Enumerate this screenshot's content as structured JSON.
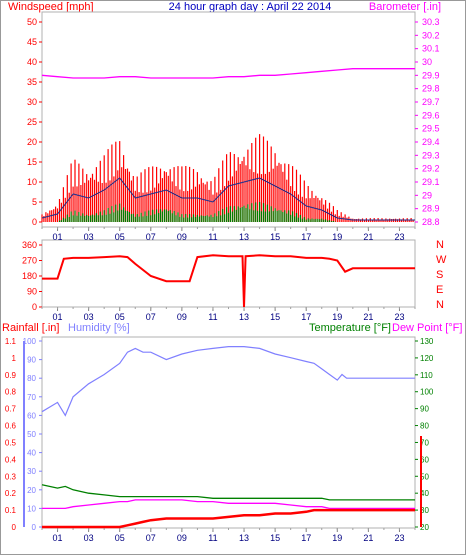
{
  "title": "24 hour graph day : April 22 2014",
  "colors": {
    "wind_gust": "#ff0000",
    "wind_avg": "#1c2c8c",
    "wind_low": "#008000",
    "barometer": "#ff00ff",
    "direction": "#ff0000",
    "rain": "#ff0000",
    "humidity": "#8080ff",
    "temperature": "#008000",
    "dewpoint": "#ff00ff",
    "hour_labels": "#000080"
  },
  "chart_data": [
    {
      "type": "line",
      "panel": "wind-barometer",
      "left_axis": {
        "label": "Windspeed [mph]",
        "ticks": [
          0,
          5,
          10,
          15,
          20,
          25,
          30,
          35,
          40,
          45,
          50
        ],
        "range": [
          0,
          50
        ]
      },
      "right_axis": {
        "label": "Barometer [.in]",
        "ticks": [
          "28.8",
          "28.9",
          "29",
          "29.1",
          "29.2",
          "29.3",
          "29.4",
          "29.5",
          "29.6",
          "29.7",
          "29.8",
          "29.9",
          "30",
          "30.1",
          "30.2",
          "30.3"
        ],
        "range": [
          28.8,
          30.3
        ]
      },
      "x_ticks": [
        "01",
        "03",
        "05",
        "07",
        "09",
        "11",
        "13",
        "15",
        "17",
        "19",
        "21",
        "23"
      ],
      "x": [
        0,
        1,
        2,
        3,
        4,
        5,
        6,
        7,
        8,
        9,
        10,
        11,
        12,
        13,
        14,
        15,
        16,
        17,
        18,
        19,
        20,
        21,
        22,
        23,
        24
      ],
      "series": [
        {
          "key": "gust",
          "values": [
            2,
            5,
            16,
            14,
            17,
            22,
            12,
            14,
            16,
            14,
            14,
            11,
            18,
            20,
            22,
            20,
            15,
            10,
            7,
            3,
            1,
            1,
            1,
            1,
            1
          ]
        },
        {
          "key": "avg",
          "values": [
            1,
            2,
            7,
            6,
            8,
            11,
            6,
            7,
            8,
            6,
            6,
            5,
            9,
            10,
            11,
            9,
            7,
            4,
            3,
            1,
            0.5,
            0.5,
            0.5,
            0.5,
            0.5
          ]
        },
        {
          "key": "low",
          "values": [
            0,
            0,
            3,
            2,
            3,
            5,
            2,
            3,
            4,
            2,
            2,
            2,
            4,
            5,
            5,
            4,
            3,
            1,
            1,
            0,
            0,
            0,
            0,
            0,
            0
          ]
        },
        {
          "key": "barometer",
          "values": [
            29.9,
            29.89,
            29.88,
            29.88,
            29.88,
            29.89,
            29.89,
            29.88,
            29.88,
            29.88,
            29.88,
            29.88,
            29.89,
            29.89,
            29.9,
            29.9,
            29.91,
            29.92,
            29.93,
            29.94,
            29.95,
            29.95,
            29.95,
            29.95,
            29.95
          ]
        }
      ]
    },
    {
      "type": "line",
      "panel": "wind-direction",
      "left_axis": {
        "ticks": [
          0,
          90,
          180,
          270,
          360
        ],
        "range": [
          0,
          360
        ]
      },
      "compass": [
        "N",
        "W",
        "S",
        "E",
        "N"
      ],
      "x": [
        0,
        1,
        1.4,
        2,
        3,
        4,
        5,
        5.5,
        6,
        7,
        8,
        9,
        9.5,
        10,
        11,
        12,
        12.9,
        13,
        13.1,
        14,
        15,
        16,
        17,
        18,
        18.5,
        19,
        19.5,
        20,
        24
      ],
      "values": [
        165,
        165,
        280,
        285,
        285,
        290,
        295,
        290,
        250,
        180,
        150,
        150,
        150,
        290,
        300,
        295,
        295,
        0,
        295,
        300,
        295,
        295,
        285,
        285,
        280,
        270,
        205,
        225,
        225
      ]
    },
    {
      "type": "line",
      "panel": "rain-humidity-temperature",
      "rain_axis": {
        "label": "Rainfall [.in]",
        "ticks": [
          "0",
          "0.1",
          "0.2",
          "0.3",
          "0.4",
          "0.5",
          "0.6",
          "0.7",
          "0.8",
          "0.9",
          "1",
          "1.1"
        ],
        "range": [
          0,
          1.1
        ]
      },
      "humidity_axis": {
        "label": "Humidity [%]",
        "ticks": [
          "0",
          "10",
          "20",
          "30",
          "40",
          "50",
          "60",
          "70",
          "80",
          "90",
          "100"
        ],
        "range": [
          0,
          100
        ]
      },
      "temperature_axis": {
        "label": "Temperature [°F]",
        "ticks": [
          "20",
          "30",
          "40",
          "50",
          "60",
          "70",
          "80",
          "90",
          "100",
          "110",
          "120",
          "130"
        ],
        "range": [
          20,
          130
        ]
      },
      "dewpoint_label": "Dew Point [°F]",
      "x": [
        0,
        1,
        1.5,
        2,
        3,
        4,
        5,
        5.5,
        6,
        6.5,
        7,
        8,
        9,
        10,
        11,
        12,
        13,
        14,
        15,
        16,
        17,
        17.5,
        18,
        18.5,
        19,
        19.3,
        19.6,
        20,
        24
      ],
      "series": [
        {
          "key": "rain",
          "values": [
            0,
            0,
            0,
            0,
            0,
            0,
            0,
            0.01,
            0.02,
            0.03,
            0.04,
            0.05,
            0.05,
            0.05,
            0.05,
            0.06,
            0.07,
            0.07,
            0.08,
            0.08,
            0.09,
            0.1,
            0.1,
            0.1,
            0.1,
            0.1,
            0.1,
            0.1,
            0.1
          ]
        },
        {
          "key": "humidity",
          "values": [
            62,
            67,
            60,
            70,
            77,
            82,
            88,
            94,
            96,
            94,
            94,
            90,
            93,
            95,
            96,
            97,
            97,
            96,
            93,
            91,
            89,
            88,
            85,
            82,
            79,
            82,
            80,
            80,
            80
          ]
        },
        {
          "key": "temperature",
          "values": [
            45,
            43,
            44,
            42,
            40,
            39,
            38,
            38,
            38,
            38,
            38,
            38,
            38,
            38,
            37,
            37,
            37,
            37,
            37,
            37,
            37,
            37,
            37,
            36,
            36,
            36,
            36,
            36,
            36
          ]
        },
        {
          "key": "dewpoint",
          "values": [
            31,
            31,
            31,
            32,
            33,
            34,
            35,
            35,
            36,
            36,
            36,
            36,
            36,
            35,
            35,
            34,
            34,
            34,
            34,
            33,
            32,
            32,
            32,
            31,
            31,
            31,
            31,
            31,
            31
          ]
        }
      ]
    }
  ]
}
